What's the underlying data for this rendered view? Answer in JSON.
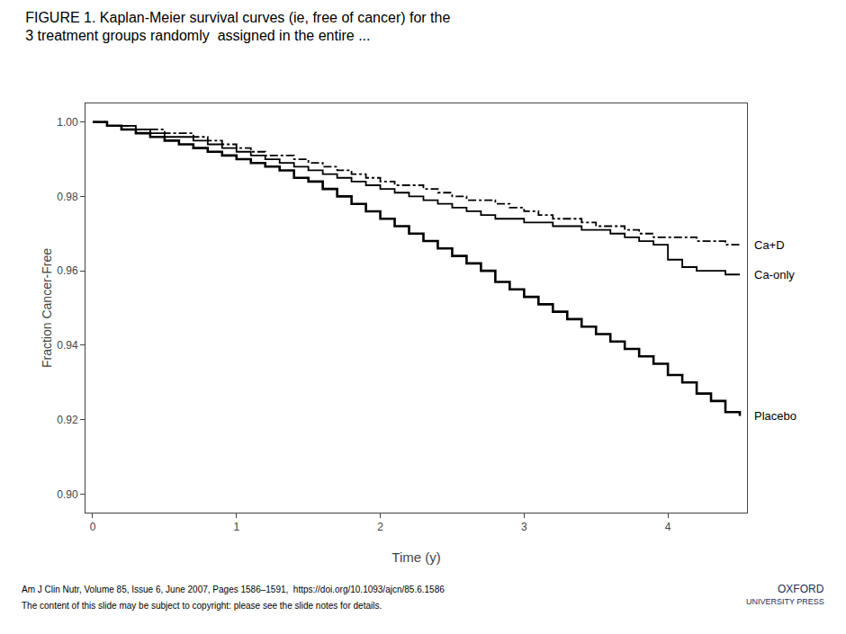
{
  "chart_data": {
    "type": "line",
    "title": "FIGURE 1. Kaplan-Meier survival curves (ie, free of cancer) for the\n3 treatment groups randomly  assigned in the entire ...",
    "x_label": "Time (y)",
    "y_label": "Fraction Cancer-Free",
    "x": [
      0,
      0.1,
      0.2,
      0.3,
      0.4,
      0.5,
      0.6,
      0.7,
      0.8,
      0.9,
      1.0,
      1.1,
      1.2,
      1.3,
      1.4,
      1.5,
      1.6,
      1.7,
      1.8,
      1.9,
      2.0,
      2.1,
      2.2,
      2.3,
      2.4,
      2.5,
      2.6,
      2.7,
      2.8,
      2.9,
      3.0,
      3.1,
      3.2,
      3.3,
      3.4,
      3.5,
      3.6,
      3.7,
      3.8,
      3.9,
      4.0,
      4.1,
      4.2,
      4.3,
      4.4,
      4.5
    ],
    "series": [
      {
        "name": "Ca+D",
        "color": "#000000",
        "line_style": "dashdot",
        "values": [
          1.0,
          0.999,
          0.999,
          0.998,
          0.998,
          0.997,
          0.997,
          0.996,
          0.995,
          0.994,
          0.993,
          0.992,
          0.991,
          0.991,
          0.99,
          0.989,
          0.988,
          0.987,
          0.986,
          0.985,
          0.984,
          0.983,
          0.983,
          0.982,
          0.981,
          0.98,
          0.979,
          0.979,
          0.978,
          0.977,
          0.976,
          0.975,
          0.974,
          0.974,
          0.973,
          0.972,
          0.972,
          0.971,
          0.97,
          0.969,
          0.969,
          0.969,
          0.968,
          0.968,
          0.967,
          0.967
        ]
      },
      {
        "name": "Ca-only",
        "color": "#000000",
        "line_style": "solid",
        "values": [
          1.0,
          0.999,
          0.999,
          0.998,
          0.997,
          0.996,
          0.996,
          0.995,
          0.994,
          0.993,
          0.992,
          0.991,
          0.99,
          0.989,
          0.988,
          0.987,
          0.986,
          0.985,
          0.984,
          0.983,
          0.982,
          0.981,
          0.98,
          0.979,
          0.978,
          0.977,
          0.976,
          0.975,
          0.974,
          0.974,
          0.973,
          0.973,
          0.972,
          0.972,
          0.971,
          0.971,
          0.97,
          0.969,
          0.968,
          0.967,
          0.963,
          0.961,
          0.96,
          0.96,
          0.959,
          0.959
        ]
      },
      {
        "name": "Placebo",
        "color": "#000000",
        "line_style": "solid",
        "values": [
          1.0,
          0.999,
          0.998,
          0.997,
          0.996,
          0.995,
          0.994,
          0.993,
          0.992,
          0.991,
          0.99,
          0.989,
          0.988,
          0.987,
          0.985,
          0.984,
          0.982,
          0.98,
          0.978,
          0.976,
          0.974,
          0.972,
          0.97,
          0.968,
          0.966,
          0.964,
          0.962,
          0.96,
          0.957,
          0.955,
          0.953,
          0.951,
          0.949,
          0.947,
          0.945,
          0.943,
          0.941,
          0.939,
          0.937,
          0.935,
          0.932,
          0.93,
          0.927,
          0.925,
          0.922,
          0.921
        ]
      }
    ],
    "xlim": [
      -0.05,
      4.55
    ],
    "ylim": [
      0.895,
      1.005
    ],
    "xticks": [
      0,
      1,
      2,
      3,
      4
    ],
    "yticks": [
      {
        "value": 0.9,
        "label": "0.90"
      },
      0.92,
      0.94,
      0.96,
      0.98,
      {
        "value": 1,
        "label": "1.00"
      }
    ],
    "grid": false,
    "annotations": [
      "Am J Clin Nutr, Volume 85, Issue 6, June 2007, Pages 1586–1591,  https://doi.org/10.1093/ajcn/85.6.1586",
      "The content of this slide may be subject to copyright: please see the slide notes for details.",
      "OXFORD",
      "UNIVERSITY PRESS"
    ]
  }
}
